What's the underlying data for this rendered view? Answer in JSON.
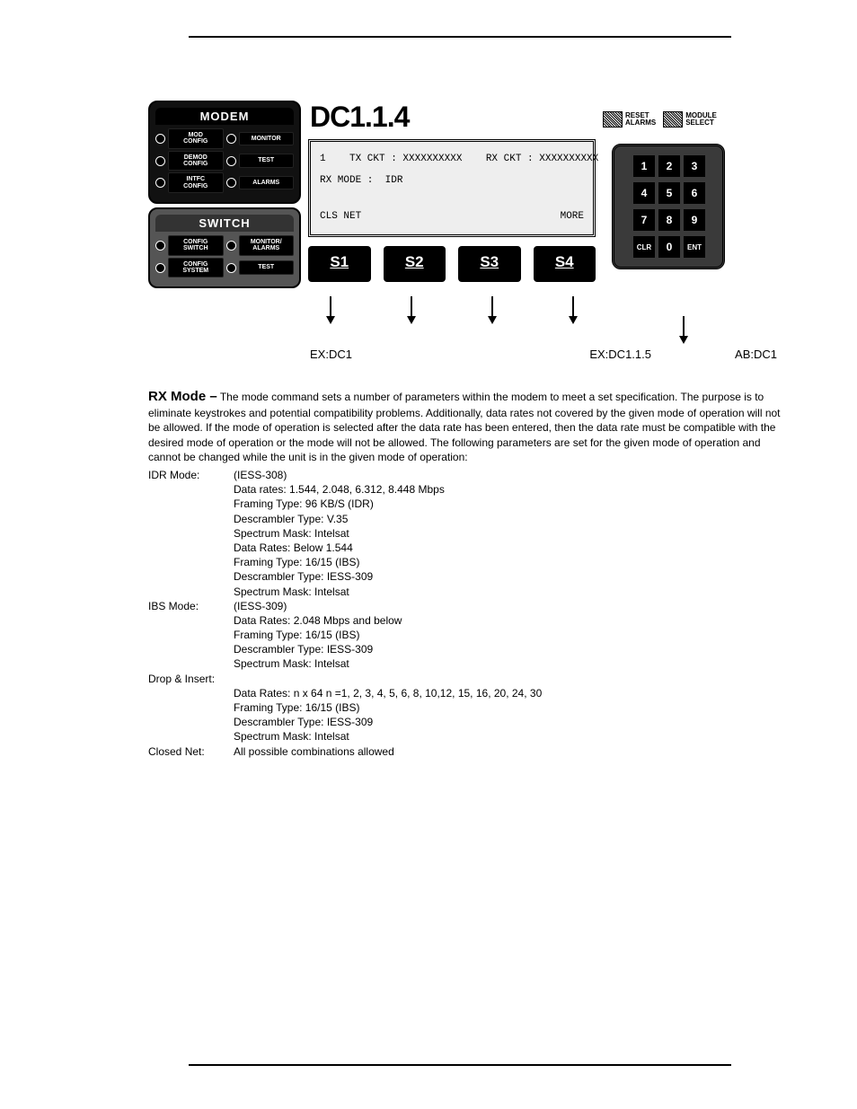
{
  "title": "DC1.1.4",
  "modem_panel": {
    "title": "MODEM",
    "rows": [
      {
        "left": "MOD\nCONFIG",
        "right": "MONITOR"
      },
      {
        "left": "DEMOD\nCONFIG",
        "right": "TEST"
      },
      {
        "left": "INTFC\nCONFIG",
        "right": "ALARMS"
      }
    ]
  },
  "switch_panel": {
    "title": "SWITCH",
    "rows": [
      {
        "left": "CONFIG\nSWITCH",
        "right": "MONITOR/\nALARMS"
      },
      {
        "left": "CONFIG\nSYSTEM",
        "right": "TEST"
      }
    ]
  },
  "lcd": {
    "line1": "1    TX CKT : XXXXXXXXXX    RX CKT : XXXXXXXXXX",
    "line2": "RX MODE :  IDR",
    "bottom_left": "CLS NET",
    "bottom_right": "MORE"
  },
  "softkeys": [
    "S1",
    "S2",
    "S3",
    "S4"
  ],
  "arrow_labels": {
    "a1": "EX:DC1",
    "a2": "EX:DC1.1.5",
    "a3": "AB:DC1"
  },
  "top_right": {
    "reset": "RESET\nALARMS",
    "module": "MODULE\nSELECT"
  },
  "keypad": {
    "keys": [
      "1",
      "2",
      "3",
      "4",
      "5",
      "6",
      "7",
      "8",
      "9",
      "CLR",
      "0",
      "ENT"
    ]
  },
  "body": {
    "heading": "RX Mode  –",
    "paragraph": "The mode command sets a number of parameters within the modem to meet a set specification. The purpose is to eliminate keystrokes and potential compatibility problems.  Additionally, data rates not covered by the given mode of operation will not be allowed. If the mode of operation is selected after the data rate has been entered, then the data rate must be compatible with the desired mode of operation or the mode will not be allowed.  The following parameters are set for the given mode of operation and cannot be changed while the unit is in the given mode of operation:",
    "sections": [
      {
        "label": "IDR Mode:",
        "lines": [
          "(IESS-308)",
          "Data rates: 1.544, 2.048, 6.312, 8.448 Mbps",
          "Framing Type: 96 KB/S (IDR)",
          "Descrambler  Type: V.35",
          "Spectrum Mask: Intelsat",
          "Data Rates: Below 1.544",
          "Framing Type: 16/15 (IBS)",
          "Descrambler Type: IESS-309",
          "Spectrum Mask: Intelsat"
        ]
      },
      {
        "label": "IBS Mode:",
        "lines": [
          "(IESS-309)",
          "Data Rates: 2.048 Mbps and below",
          "Framing Type: 16/15 (IBS)",
          "Descrambler Type: IESS-309",
          "Spectrum Mask: Intelsat"
        ]
      },
      {
        "label": "Drop & Insert:",
        "lines": [
          "",
          "Data Rates: n x 64 n =1, 2, 3, 4, 5, 6, 8, 10,12, 15, 16, 20, 24, 30",
          "Framing Type: 16/15 (IBS)",
          "Descrambler Type: IESS-309",
          "Spectrum Mask: Intelsat"
        ]
      },
      {
        "label": "Closed Net:",
        "lines": [
          "All possible combinations allowed"
        ]
      }
    ]
  }
}
